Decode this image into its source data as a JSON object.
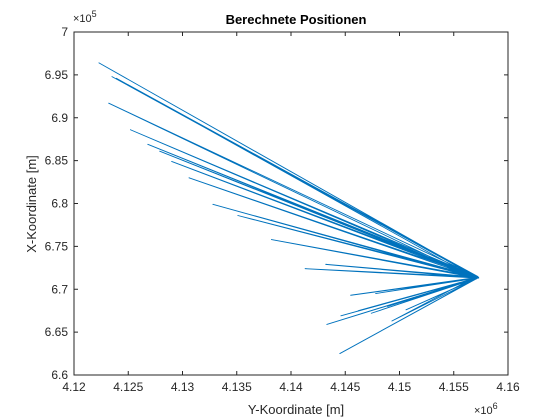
{
  "chart_data": {
    "type": "line",
    "title": "Berechnete Positionen",
    "xlabel": "Y-Koordinate [m]",
    "ylabel": "X-Koordinate [m]",
    "x_multiplier": {
      "base": "×10",
      "exponent": "6"
    },
    "y_multiplier": {
      "base": "×10",
      "exponent": "5"
    },
    "xlim": [
      4120000,
      4160000
    ],
    "ylim": [
      660000,
      700000
    ],
    "x_ticks": [
      4120000,
      4125000,
      4130000,
      4135000,
      4140000,
      4145000,
      4150000,
      4155000,
      4160000
    ],
    "x_tick_labels": [
      "4.12",
      "4.125",
      "4.13",
      "4.135",
      "4.14",
      "4.145",
      "4.15",
      "4.155",
      "4.16"
    ],
    "y_ticks": [
      660000,
      665000,
      670000,
      675000,
      680000,
      685000,
      690000,
      695000,
      700000
    ],
    "y_tick_labels": [
      "6.6",
      "6.65",
      "6.7",
      "6.75",
      "6.8",
      "6.85",
      "6.9",
      "6.95",
      "7"
    ],
    "grid": false,
    "box": true,
    "line_color": "#0072BD",
    "series": [
      {
        "x": [
          4157200,
          4122300,
          4157300,
          4123500,
          4157200,
          4123900,
          4157100,
          4123200,
          4157300,
          4125200,
          4157200,
          4126800,
          4157300,
          4127900,
          4157200,
          4129000,
          4157300,
          4130600,
          4157200,
          4132800,
          4157300,
          4135100,
          4157200,
          4138200,
          4157300,
          4141300,
          4157200,
          4143200,
          4157300,
          4145500,
          4157200,
          4147800,
          4157300,
          4143300,
          4157200,
          4144600,
          4157300,
          4146200,
          4157200,
          4147400,
          4157300,
          4148900,
          4157200,
          4150600,
          4157300,
          4144500,
          4157200,
          4149300,
          4157100
        ],
        "y": [
          671400,
          696400,
          671300,
          694800,
          671500,
          694600,
          671200,
          691700,
          671400,
          688600,
          671300,
          686900,
          671400,
          686100,
          671300,
          684900,
          671400,
          683000,
          671300,
          679900,
          671400,
          678600,
          671300,
          675800,
          671400,
          672400,
          671300,
          672900,
          671400,
          669300,
          671300,
          669500,
          671400,
          665900,
          671300,
          666900,
          671400,
          667500,
          671300,
          667200,
          671400,
          668000,
          671300,
          667600,
          671400,
          662500,
          671300,
          666300,
          671500
        ]
      }
    ]
  }
}
